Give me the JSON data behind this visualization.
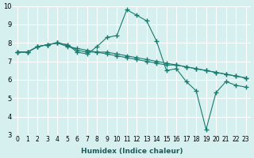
{
  "xlabel": "Humidex (Indice chaleur)",
  "bg_color": "#d6f0f0",
  "line_color": "#1a7a6e",
  "grid_color": "#ffffff",
  "xlim": [
    0,
    23
  ],
  "ylim": [
    3,
    10
  ],
  "xticks": [
    0,
    1,
    2,
    3,
    4,
    5,
    6,
    7,
    8,
    9,
    10,
    11,
    12,
    13,
    14,
    15,
    16,
    17,
    18,
    19,
    20,
    21,
    22,
    23
  ],
  "yticks": [
    3,
    4,
    5,
    6,
    7,
    8,
    9,
    10
  ],
  "lines": [
    {
      "x": [
        0,
        1,
        2,
        3,
        4,
        5,
        6,
        7,
        8,
        9,
        10,
        11,
        12,
        13,
        14,
        15,
        16,
        17,
        18,
        19,
        20,
        21,
        22,
        23
      ],
      "y": [
        7.5,
        7.5,
        7.8,
        7.9,
        8.0,
        7.9,
        7.5,
        7.4,
        7.8,
        8.3,
        8.4,
        9.8,
        9.5,
        9.2,
        8.1,
        6.5,
        6.6,
        5.9,
        5.4,
        3.3,
        5.3,
        5.9,
        5.7,
        5.6
      ]
    },
    {
      "x": [
        0,
        1,
        2,
        3,
        4,
        5,
        6,
        7,
        8,
        9,
        10,
        11,
        12,
        13,
        14,
        15,
        16,
        17,
        18,
        19,
        20,
        21,
        22,
        23
      ],
      "y": [
        7.5,
        7.5,
        7.8,
        7.9,
        8.0,
        7.9,
        7.6,
        7.5,
        7.5,
        7.5,
        7.4,
        7.3,
        7.2,
        7.1,
        7.0,
        6.9,
        6.8,
        6.7,
        6.6,
        6.5,
        6.4,
        6.3,
        6.2,
        6.1
      ]
    },
    {
      "x": [
        0,
        1,
        2,
        3,
        4,
        5,
        6,
        7,
        8,
        9,
        10,
        11,
        12,
        13,
        14,
        15,
        16,
        17,
        18,
        19,
        20,
        21,
        22,
        23
      ],
      "y": [
        7.5,
        7.5,
        7.8,
        7.9,
        8.0,
        7.8,
        7.7,
        7.6,
        7.5,
        7.4,
        7.3,
        7.2,
        7.1,
        7.0,
        6.9,
        6.8,
        6.8,
        6.7,
        6.6,
        6.5,
        6.4,
        6.3,
        6.2,
        6.1
      ]
    }
  ]
}
